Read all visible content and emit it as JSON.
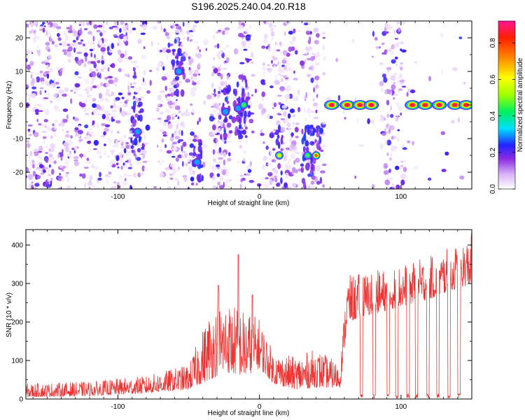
{
  "title": "S196.2025.240.04.20.R18",
  "chart_data": [
    {
      "type": "heatmap",
      "xlabel": "Height of straight line (km)",
      "ylabel": "Frequency (Hz)",
      "xlim": [
        -165,
        150
      ],
      "ylim": [
        -25,
        25
      ],
      "xticks": [
        -100,
        0,
        100
      ],
      "yticks": [
        -20,
        -10,
        0,
        10,
        20
      ],
      "colorbar": {
        "label": "Normalized spectral amplitude",
        "range": [
          0,
          0.92
        ],
        "ticks": [
          0.0,
          0.2,
          0.4,
          0.6,
          0.8
        ]
      },
      "strong_features": [
        {
          "x": -86,
          "y": -8,
          "amplitude": 0.35
        },
        {
          "x": -57,
          "y": 10,
          "amplitude": 0.3
        },
        {
          "x": -44,
          "y": -17,
          "amplitude": 0.35
        },
        {
          "x": -24,
          "y": -2,
          "amplitude": 0.3
        },
        {
          "x": -15,
          "y": -1,
          "amplitude": 0.4
        },
        {
          "x": -11,
          "y": 0,
          "amplitude": 0.45
        },
        {
          "x": 14,
          "y": -15,
          "amplitude": 0.6
        },
        {
          "x": 34,
          "y": -15,
          "amplitude": 0.45
        },
        {
          "x": 40,
          "y": -15,
          "amplitude": 0.8
        },
        {
          "x": 51,
          "y": 0,
          "amplitude": 0.9
        },
        {
          "x": 62,
          "y": 0,
          "amplitude": 0.9
        },
        {
          "x": 71,
          "y": 0,
          "amplitude": 0.9
        },
        {
          "x": 79,
          "y": 0,
          "amplitude": 0.9
        },
        {
          "x": 108,
          "y": 0,
          "amplitude": 0.9
        },
        {
          "x": 117,
          "y": 0,
          "amplitude": 0.9
        },
        {
          "x": 127,
          "y": 0,
          "amplitude": 0.9
        },
        {
          "x": 138,
          "y": 0,
          "amplitude": 0.9
        },
        {
          "x": 146,
          "y": 0,
          "amplitude": 0.9
        }
      ],
      "blank_bands": [
        [
          -80,
          -72
        ],
        [
          -42,
          -34
        ],
        [
          -21,
          -14
        ],
        [
          -5,
          2
        ],
        [
          27,
          30
        ],
        [
          41,
          44
        ],
        [
          53,
          56
        ],
        [
          85,
          84
        ],
        [
          103,
          106
        ]
      ]
    },
    {
      "type": "line",
      "xlabel": "Height of straight line (km)",
      "ylabel": "SNR (10 * v/v)",
      "xlim": [
        -165,
        150
      ],
      "ylim": [
        0,
        440
      ],
      "xticks": [
        -100,
        0,
        100
      ],
      "yticks": [
        0,
        100,
        200,
        300,
        400
      ],
      "color": "#ee3333",
      "envelope": [
        {
          "x": -165,
          "low": 5,
          "high": 40
        },
        {
          "x": -120,
          "low": 8,
          "high": 45
        },
        {
          "x": -80,
          "low": 15,
          "high": 60
        },
        {
          "x": -50,
          "low": 25,
          "high": 90
        },
        {
          "x": -35,
          "low": 50,
          "high": 230
        },
        {
          "x": -25,
          "low": 70,
          "high": 260
        },
        {
          "x": -10,
          "low": 60,
          "high": 230
        },
        {
          "x": 0,
          "low": 80,
          "high": 210
        },
        {
          "x": 10,
          "low": 40,
          "high": 120
        },
        {
          "x": 25,
          "low": 25,
          "high": 110
        },
        {
          "x": 40,
          "low": 30,
          "high": 130
        },
        {
          "x": 57,
          "low": 30,
          "high": 90
        },
        {
          "x": 62,
          "low": 200,
          "high": 320
        },
        {
          "x": 90,
          "low": 230,
          "high": 340
        },
        {
          "x": 120,
          "low": 260,
          "high": 370
        },
        {
          "x": 150,
          "low": 300,
          "high": 420
        }
      ],
      "spikes": [
        {
          "x": -29,
          "y": 295
        },
        {
          "x": -15,
          "y": 375
        },
        {
          "x": -5,
          "y": 270
        },
        {
          "x": 150,
          "y": 430
        }
      ],
      "dropouts": [
        72,
        81,
        91,
        97,
        105,
        111,
        119,
        126,
        134,
        141
      ]
    }
  ]
}
